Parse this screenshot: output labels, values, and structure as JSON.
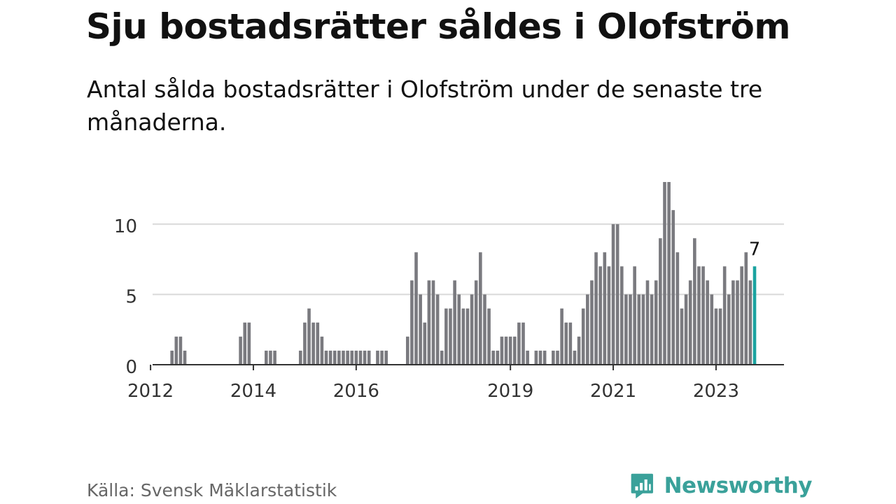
{
  "header": {
    "title": "Sju bostadsrätter såldes i Olofström",
    "subtitle": "Antal sålda bostadsrätter i Olofström under de senaste tre månaderna."
  },
  "footer": {
    "source": "Källa: Svensk Mäklarstatistik",
    "brand": "Newsworthy"
  },
  "colors": {
    "bar": "#7a7a7f",
    "highlight": "#1aa3a0",
    "grid": "#d9d9d9",
    "axis": "#333333",
    "brand": "#3aa19a"
  },
  "chart_data": {
    "type": "bar",
    "xlabel": "",
    "ylabel": "",
    "ylim": [
      0,
      13
    ],
    "yticks": [
      0,
      5,
      10
    ],
    "xtick_labels": [
      "2012",
      "2014",
      "2016",
      "2019",
      "2021",
      "2023"
    ],
    "start_year": 2011,
    "start_month": 11,
    "highlight_last": true,
    "annotation": "7",
    "values": [
      0,
      0,
      0,
      0,
      0,
      0,
      0,
      1,
      2,
      2,
      1,
      0,
      0,
      0,
      0,
      0,
      0,
      0,
      0,
      0,
      0,
      0,
      0,
      2,
      3,
      3,
      0,
      0,
      0,
      1,
      1,
      1,
      0,
      0,
      0,
      0,
      0,
      1,
      3,
      4,
      3,
      3,
      2,
      1,
      1,
      1,
      1,
      1,
      1,
      1,
      1,
      1,
      1,
      1,
      0,
      1,
      1,
      1,
      0,
      0,
      0,
      0,
      2,
      6,
      8,
      5,
      3,
      6,
      6,
      5,
      1,
      4,
      4,
      6,
      5,
      4,
      4,
      5,
      6,
      8,
      5,
      4,
      1,
      1,
      2,
      2,
      2,
      2,
      3,
      3,
      1,
      0,
      1,
      1,
      1,
      0,
      1,
      1,
      4,
      3,
      3,
      1,
      2,
      4,
      5,
      6,
      8,
      7,
      8,
      7,
      10,
      10,
      7,
      5,
      5,
      7,
      5,
      5,
      6,
      5,
      6,
      9,
      13,
      13,
      11,
      8,
      4,
      5,
      6,
      9,
      7,
      7,
      6,
      5,
      4,
      4,
      7,
      5,
      6,
      6,
      7,
      8,
      6,
      7
    ]
  }
}
